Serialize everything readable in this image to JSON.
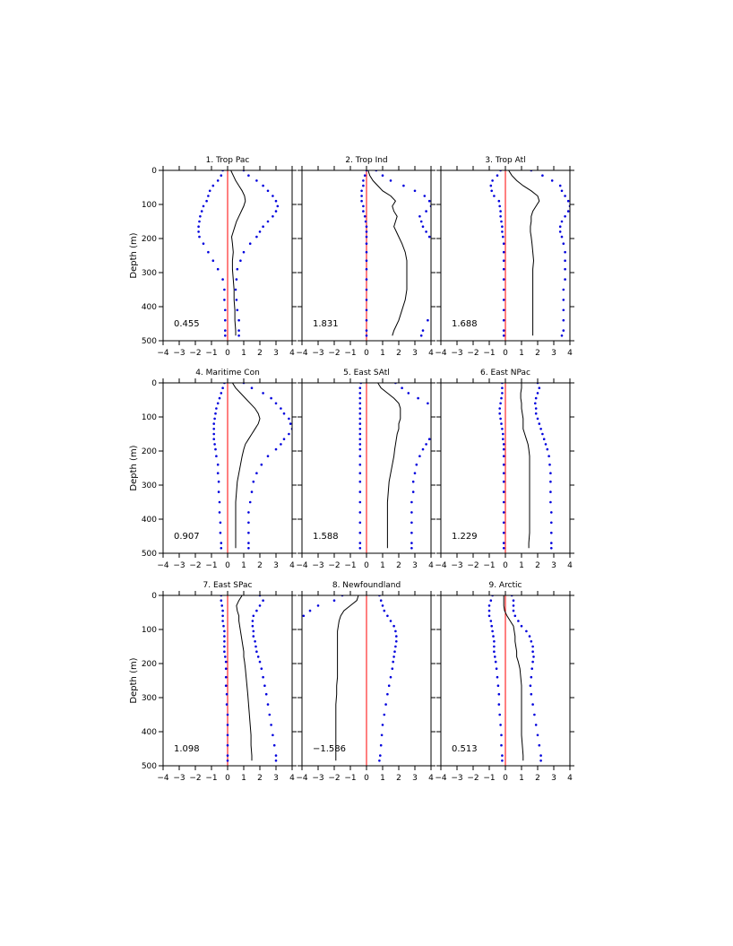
{
  "chart_data": {
    "type": "line",
    "ylabel": "Depth (m)",
    "xlim": [
      -4,
      4
    ],
    "ylim": [
      500,
      0
    ],
    "y_inverted": true,
    "x_ticks": [
      "−4",
      "−3",
      "−2",
      "−1",
      "0",
      "1",
      "2",
      "3",
      "4"
    ],
    "y_ticks": [
      "0",
      "100",
      "200",
      "300",
      "400",
      "500"
    ],
    "grid": false,
    "colors": {
      "mean": "#000000",
      "bounds": "#0000dd",
      "zero": "#ff0000"
    },
    "depth": [
      0,
      15,
      30,
      45,
      60,
      75,
      90,
      105,
      120,
      135,
      150,
      165,
      180,
      195,
      215,
      240,
      265,
      290,
      320,
      350,
      380,
      410,
      440,
      470,
      485
    ],
    "panels": [
      {
        "title": "1. Trop Pac",
        "value_label": "0.455",
        "mean": [
          0.2,
          0.35,
          0.5,
          0.7,
          0.9,
          1.05,
          1.1,
          1.0,
          0.85,
          0.7,
          0.55,
          0.45,
          0.35,
          0.25,
          0.3,
          0.35,
          0.3,
          0.3,
          0.35,
          0.4,
          0.4,
          0.45,
          0.45,
          0.5,
          0.5
        ],
        "lower": [
          -0.3,
          -0.4,
          -0.6,
          -0.9,
          -1.1,
          -1.2,
          -1.3,
          -1.5,
          -1.6,
          -1.7,
          -1.75,
          -1.8,
          -1.8,
          -1.75,
          -1.5,
          -1.2,
          -0.9,
          -0.6,
          -0.3,
          -0.2,
          -0.2,
          -0.15,
          -0.15,
          -0.15,
          -0.15
        ],
        "upper": [
          1.0,
          1.3,
          1.8,
          2.2,
          2.5,
          2.8,
          3.0,
          3.1,
          3.0,
          2.8,
          2.5,
          2.2,
          2.0,
          1.8,
          1.4,
          1.0,
          0.8,
          0.6,
          0.55,
          0.5,
          0.55,
          0.6,
          0.7,
          0.7,
          0.7
        ]
      },
      {
        "title": "2. Trop Ind",
        "value_label": "1.831",
        "mean": [
          0.1,
          0.2,
          0.4,
          0.7,
          1.0,
          1.5,
          1.8,
          1.6,
          1.7,
          1.9,
          1.8,
          1.7,
          1.85,
          2.0,
          2.2,
          2.4,
          2.5,
          2.5,
          2.5,
          2.5,
          2.4,
          2.2,
          2.0,
          1.7,
          1.6
        ],
        "lower": [
          0.0,
          -0.1,
          -0.2,
          -0.2,
          -0.3,
          -0.3,
          -0.3,
          -0.2,
          -0.2,
          -0.1,
          -0.05,
          0.0,
          0.0,
          0.0,
          0.0,
          0.0,
          0.0,
          0.0,
          0.0,
          0.0,
          0.0,
          0.0,
          0.0,
          0.0,
          0.0
        ],
        "upper": [
          0.6,
          1.0,
          1.5,
          2.3,
          3.0,
          3.6,
          3.9,
          4.0,
          3.7,
          3.3,
          3.4,
          3.5,
          3.7,
          3.9,
          4.5,
          5.0,
          5.0,
          5.0,
          5.0,
          4.8,
          4.5,
          4.2,
          3.8,
          3.5,
          3.4
        ]
      },
      {
        "title": "3. Trop Atl",
        "value_label": "1.688",
        "mean": [
          0.2,
          0.4,
          0.7,
          1.1,
          1.6,
          2.0,
          2.1,
          1.9,
          1.7,
          1.6,
          1.6,
          1.55,
          1.55,
          1.6,
          1.65,
          1.7,
          1.75,
          1.7,
          1.7,
          1.7,
          1.7,
          1.7,
          1.7,
          1.7,
          1.7
        ],
        "lower": [
          -0.3,
          -0.5,
          -0.8,
          -0.9,
          -0.85,
          -0.7,
          -0.4,
          -0.35,
          -0.3,
          -0.3,
          -0.25,
          -0.2,
          -0.2,
          -0.15,
          -0.1,
          -0.1,
          -0.1,
          -0.1,
          -0.1,
          -0.1,
          -0.1,
          -0.1,
          -0.1,
          -0.1,
          -0.1
        ],
        "upper": [
          1.6,
          2.3,
          2.9,
          3.4,
          3.5,
          3.7,
          3.9,
          4.0,
          3.9,
          3.7,
          3.5,
          3.4,
          3.4,
          3.5,
          3.6,
          3.7,
          3.7,
          3.7,
          3.7,
          3.6,
          3.6,
          3.6,
          3.6,
          3.6,
          3.5
        ]
      },
      {
        "title": "4. Maritime Con",
        "value_label": "0.907",
        "mean": [
          0.3,
          0.5,
          0.8,
          1.1,
          1.4,
          1.7,
          1.9,
          2.0,
          1.9,
          1.7,
          1.5,
          1.3,
          1.1,
          1.0,
          0.9,
          0.8,
          0.7,
          0.6,
          0.55,
          0.5,
          0.5,
          0.5,
          0.5,
          0.5,
          0.5
        ],
        "lower": [
          -0.2,
          -0.3,
          -0.4,
          -0.5,
          -0.6,
          -0.7,
          -0.75,
          -0.8,
          -0.85,
          -0.85,
          -0.85,
          -0.85,
          -0.8,
          -0.75,
          -0.7,
          -0.6,
          -0.6,
          -0.55,
          -0.55,
          -0.5,
          -0.5,
          -0.45,
          -0.45,
          -0.4,
          -0.4
        ],
        "upper": [
          1.0,
          1.5,
          2.2,
          2.7,
          3.0,
          3.3,
          3.5,
          3.8,
          3.9,
          4.0,
          3.8,
          3.5,
          3.3,
          3.0,
          2.5,
          2.1,
          1.8,
          1.6,
          1.5,
          1.4,
          1.3,
          1.3,
          1.3,
          1.3,
          1.3
        ]
      },
      {
        "title": "5. East SAtl",
        "value_label": "1.588",
        "mean": [
          0.7,
          0.9,
          1.3,
          1.7,
          2.0,
          2.1,
          2.1,
          2.1,
          2.0,
          2.0,
          1.9,
          1.85,
          1.8,
          1.75,
          1.7,
          1.6,
          1.5,
          1.4,
          1.35,
          1.3,
          1.3,
          1.3,
          1.3,
          1.3,
          1.3
        ],
        "lower": [
          -0.35,
          -0.4,
          -0.4,
          -0.4,
          -0.4,
          -0.4,
          -0.4,
          -0.4,
          -0.4,
          -0.4,
          -0.4,
          -0.4,
          -0.4,
          -0.4,
          -0.4,
          -0.4,
          -0.4,
          -0.4,
          -0.4,
          -0.4,
          -0.4,
          -0.4,
          -0.4,
          -0.4,
          -0.4
        ],
        "upper": [
          1.8,
          2.2,
          2.6,
          3.2,
          3.8,
          4.2,
          4.4,
          4.5,
          4.5,
          4.3,
          4.1,
          3.9,
          3.7,
          3.5,
          3.3,
          3.1,
          3.0,
          2.9,
          2.9,
          2.8,
          2.8,
          2.8,
          2.8,
          2.8,
          2.8
        ]
      },
      {
        "title": "6. East NPac",
        "value_label": "1.229",
        "mean": [
          1.0,
          1.0,
          0.95,
          0.95,
          1.0,
          1.0,
          1.05,
          1.1,
          1.1,
          1.1,
          1.2,
          1.3,
          1.4,
          1.45,
          1.5,
          1.5,
          1.5,
          1.5,
          1.5,
          1.5,
          1.5,
          1.5,
          1.5,
          1.45,
          1.45
        ],
        "lower": [
          -0.2,
          -0.2,
          -0.2,
          -0.25,
          -0.3,
          -0.35,
          -0.35,
          -0.3,
          -0.25,
          -0.2,
          -0.15,
          -0.15,
          -0.1,
          -0.1,
          -0.1,
          -0.1,
          -0.1,
          -0.1,
          -0.1,
          -0.1,
          -0.1,
          -0.1,
          -0.1,
          -0.1,
          -0.1
        ],
        "upper": [
          2.0,
          2.1,
          2.0,
          1.9,
          1.85,
          1.9,
          1.9,
          2.0,
          2.1,
          2.2,
          2.3,
          2.4,
          2.5,
          2.6,
          2.7,
          2.75,
          2.8,
          2.8,
          2.8,
          2.8,
          2.85,
          2.85,
          2.85,
          2.85,
          2.85
        ]
      },
      {
        "title": "7. East SPac",
        "value_label": "1.098",
        "mean": [
          0.9,
          0.7,
          0.55,
          0.6,
          0.7,
          0.7,
          0.75,
          0.8,
          0.85,
          0.9,
          0.95,
          1.0,
          1.0,
          1.05,
          1.1,
          1.15,
          1.2,
          1.25,
          1.3,
          1.35,
          1.4,
          1.45,
          1.45,
          1.5,
          1.5
        ],
        "lower": [
          -0.4,
          -0.4,
          -0.35,
          -0.3,
          -0.3,
          -0.3,
          -0.25,
          -0.2,
          -0.2,
          -0.2,
          -0.2,
          -0.2,
          -0.15,
          -0.1,
          -0.1,
          -0.1,
          -0.1,
          -0.05,
          -0.05,
          0.0,
          0.0,
          0.0,
          0.0,
          0.0,
          0.0
        ],
        "upper": [
          2.0,
          2.2,
          2.0,
          1.8,
          1.6,
          1.55,
          1.55,
          1.6,
          1.6,
          1.7,
          1.75,
          1.8,
          1.9,
          2.0,
          2.1,
          2.2,
          2.3,
          2.4,
          2.5,
          2.6,
          2.7,
          2.8,
          2.9,
          3.0,
          3.0
        ]
      },
      {
        "title": "8. Newfoundland",
        "value_label": "−1.586",
        "mean": [
          -0.5,
          -0.6,
          -1.0,
          -1.4,
          -1.6,
          -1.7,
          -1.75,
          -1.8,
          -1.8,
          -1.8,
          -1.8,
          -1.8,
          -1.8,
          -1.8,
          -1.8,
          -1.8,
          -1.85,
          -1.85,
          -1.9,
          -1.9,
          -1.9,
          -1.9,
          -1.9,
          -1.9,
          -1.9
        ],
        "lower": [
          -1.5,
          -2.0,
          -3.0,
          -3.5,
          -3.9,
          -4.3,
          -4.6,
          -4.8,
          -4.9,
          -4.95,
          -5.0,
          -5.0,
          -5.0,
          -5.0,
          -5.0,
          -5.0,
          -5.0,
          -5.0,
          -5.0,
          -5.0,
          -5.0,
          -5.0,
          -5.0,
          -5.0,
          -5.0
        ],
        "upper": [
          0.8,
          0.9,
          1.0,
          1.1,
          1.3,
          1.5,
          1.7,
          1.8,
          1.85,
          1.85,
          1.8,
          1.75,
          1.7,
          1.65,
          1.6,
          1.5,
          1.4,
          1.3,
          1.2,
          1.1,
          1.0,
          0.95,
          0.9,
          0.85,
          0.8
        ]
      },
      {
        "title": "9. Arctic",
        "value_label": "0.513",
        "mean": [
          -0.1,
          -0.1,
          -0.1,
          -0.05,
          0.1,
          0.3,
          0.5,
          0.55,
          0.6,
          0.6,
          0.65,
          0.7,
          0.7,
          0.8,
          0.9,
          0.95,
          1.0,
          1.0,
          1.0,
          1.0,
          1.0,
          1.0,
          1.05,
          1.1,
          1.1
        ],
        "lower": [
          -0.8,
          -0.9,
          -1.0,
          -1.0,
          -1.0,
          -0.9,
          -0.85,
          -0.8,
          -0.75,
          -0.7,
          -0.7,
          -0.7,
          -0.65,
          -0.6,
          -0.55,
          -0.5,
          -0.45,
          -0.4,
          -0.4,
          -0.35,
          -0.3,
          -0.25,
          -0.25,
          -0.2,
          -0.2
        ],
        "upper": [
          0.4,
          0.5,
          0.5,
          0.5,
          0.6,
          0.8,
          1.0,
          1.3,
          1.5,
          1.6,
          1.7,
          1.7,
          1.75,
          1.7,
          1.65,
          1.6,
          1.55,
          1.6,
          1.7,
          1.8,
          1.9,
          2.0,
          2.1,
          2.2,
          2.2
        ]
      }
    ]
  }
}
